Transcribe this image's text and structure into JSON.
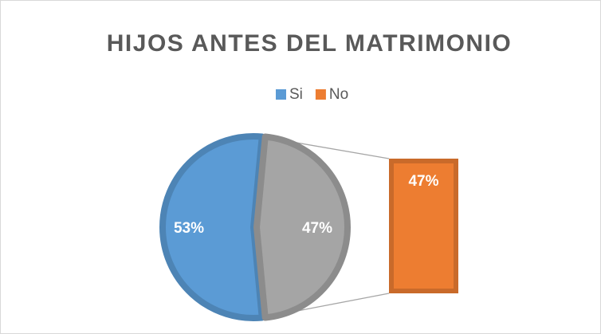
{
  "chart_data": {
    "type": "bar-of-pie",
    "title": "HIJOS ANTES DEL MATRIMONIO",
    "categories": [
      "Si",
      "No"
    ],
    "values": [
      53,
      47
    ],
    "value_labels": [
      "53%",
      "47%"
    ],
    "colors": [
      "#5B9BD5",
      "#ED7D31"
    ],
    "combined_color": "#A5A5A5",
    "legend": "top"
  }
}
